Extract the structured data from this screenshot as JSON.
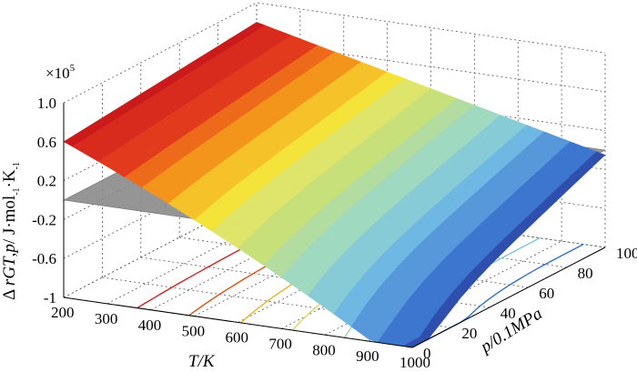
{
  "chart_data": {
    "type": "surface3d",
    "title": "",
    "xlabel": "T/K",
    "ylabel": "p/0.1MPa",
    "zlabel": "Δ rGT,p/ J·mol-1·K-1",
    "zlabel_parts": {
      "delta": "Δ",
      "r": "r",
      "G": "G",
      "T": "T",
      "sep": ",",
      "p": "p",
      "unit": "/ J·mol",
      "exp1": "-1",
      "mid": "·K",
      "exp2": "-1"
    },
    "z_multiplier": "×10",
    "z_multiplier_exp": "5",
    "x_ticks": [
      "200",
      "300",
      "400",
      "500",
      "600",
      "700",
      "800",
      "900",
      "1000"
    ],
    "y_ticks": [
      "0",
      "20",
      "40",
      "60",
      "80",
      "100"
    ],
    "z_ticks": [
      "-1",
      "-0.6",
      "-0.2",
      "0.2",
      "0.6",
      "1.0"
    ],
    "xlim": [
      200,
      1000
    ],
    "ylim": [
      0,
      100
    ],
    "zlim": [
      -1.0,
      1.0
    ],
    "z_scale": 100000,
    "grid": true,
    "zero_plane": {
      "z": 0,
      "color": "#8a8a8a"
    },
    "surface": {
      "description": "Gibbs free energy change surface over temperature and pressure",
      "approx_values": [
        {
          "T": 200,
          "p": 0,
          "z": 0.6
        },
        {
          "T": 200,
          "p": 100,
          "z": 0.8
        },
        {
          "T": 1000,
          "p": 100,
          "z": -0.05
        },
        {
          "T": 1000,
          "p": 0,
          "z": -0.9
        }
      ],
      "colormap": "jet"
    },
    "contour_lines_on_floor": [
      {
        "T": 350,
        "color": "#d62020"
      },
      {
        "T": 450,
        "color": "#e05010"
      },
      {
        "T": 550,
        "color": "#f0b020"
      },
      {
        "T": 650,
        "color": "#d8d860"
      },
      {
        "T": 750,
        "color": "#a0d8a0"
      },
      {
        "T": 850,
        "color": "#80c8d8"
      },
      {
        "T": 950,
        "color": "#3070d0"
      }
    ]
  }
}
